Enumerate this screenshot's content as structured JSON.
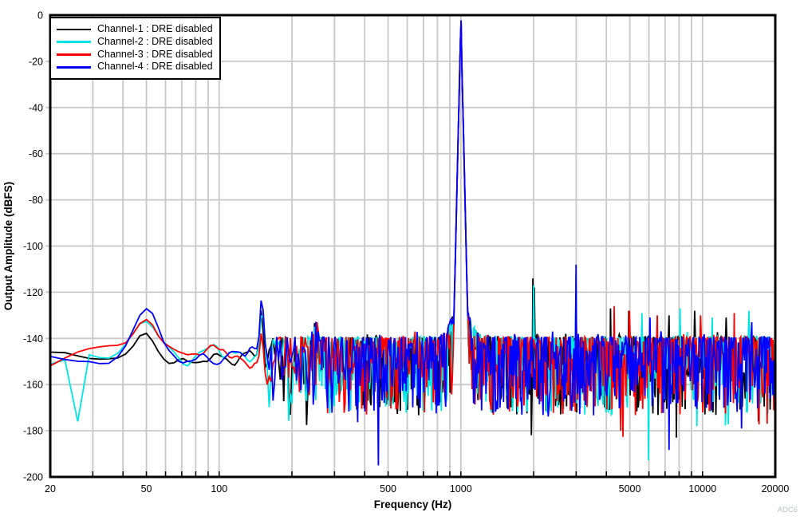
{
  "watermark": "ADC6",
  "chart_data": {
    "type": "line",
    "title": "",
    "xlabel": "Frequency (Hz)",
    "ylabel": "Output Amplitude (dBFS)",
    "x_scale": "log",
    "xlim": [
      20,
      20000
    ],
    "ylim": [
      -200,
      0
    ],
    "grid": true,
    "legend_position": "top-left",
    "background_color": "#ffffff",
    "grid_color": "#c8c8c8",
    "axis_color": "#000000",
    "x_major_ticks": [
      20,
      50,
      100,
      500,
      1000,
      5000,
      10000,
      20000
    ],
    "x_gridlines": [
      30,
      40,
      50,
      60,
      70,
      80,
      90,
      100,
      200,
      300,
      400,
      500,
      600,
      700,
      800,
      900,
      1000,
      2000,
      3000,
      4000,
      5000,
      6000,
      7000,
      8000,
      9000,
      10000
    ],
    "y_ticks": [
      0,
      -20,
      -40,
      -60,
      -80,
      -100,
      -120,
      -140,
      -160,
      -180,
      -200
    ],
    "noise_model": {
      "floor_top_dbfs": -139.3,
      "floor_median_dbfs": -147,
      "floor_deep_dbfs": -175,
      "smooth_below_hz": 150,
      "skirt_db_per_decade": 4500
    },
    "shared_features": [
      {
        "freq_hz": 50,
        "width_decades": 0.045,
        "gain_db": [
          12,
          11,
          13,
          16
        ]
      },
      {
        "freq_hz": 150,
        "width_decades": 0.007,
        "gain_db": [
          19,
          17,
          21,
          22
        ]
      },
      {
        "freq_hz": 250,
        "width_decades": 0.008,
        "gain_db": [
          8,
          5,
          9,
          7
        ]
      },
      {
        "freq_hz": 1000,
        "width_decades": 0.035,
        "gain_db": [
          15,
          15,
          15,
          15
        ]
      }
    ],
    "series": [
      {
        "name": "Channel-1 : DRE disabled",
        "color": "#000000",
        "fundamental": {
          "freq_hz": 1000,
          "amplitude_dbfs": -2.6
        },
        "spurs": [
          [
            1990,
            -114
          ],
          [
            2015,
            -118
          ],
          [
            4150,
            -127
          ],
          [
            4950,
            -128
          ],
          [
            7250,
            -130
          ],
          [
            9300,
            -128
          ],
          [
            12500,
            -131
          ]
        ],
        "dips": [
          [
            7800,
            -183
          ],
          [
            17000,
            -176
          ]
        ]
      },
      {
        "name": "Channel-2 : DRE disabled",
        "color": "#00E5E5",
        "fundamental": {
          "freq_hz": 1000,
          "amplitude_dbfs": -2.5
        },
        "spurs": [
          [
            2002,
            -117
          ],
          [
            3000,
            -119
          ],
          [
            5600,
            -129
          ],
          [
            8050,
            -127
          ],
          [
            11000,
            -131
          ],
          [
            15500,
            -128
          ]
        ],
        "dips": [
          [
            25.5,
            -176
          ],
          [
            9500,
            -178
          ]
        ]
      },
      {
        "name": "Channel-3 : DRE disabled",
        "color": "#FF0000",
        "fundamental": {
          "freq_hz": 1000,
          "amplitude_dbfs": -2.4
        },
        "spurs": [
          [
            3000,
            -127
          ],
          [
            4300,
            -126
          ],
          [
            5000,
            -128
          ],
          [
            6500,
            -130
          ],
          [
            9800,
            -130
          ],
          [
            13500,
            -129
          ]
        ],
        "dips": [
          [
            4600,
            -180
          ],
          [
            18500,
            -177
          ]
        ]
      },
      {
        "name": "Channel-4 : DRE disabled",
        "color": "#0000FF",
        "fundamental": {
          "freq_hz": 1000,
          "amplitude_dbfs": -2.2
        },
        "spurs": [
          [
            3000,
            -108
          ],
          [
            6050,
            -131
          ],
          [
            16000,
            -133
          ]
        ],
        "dips": [
          [
            455,
            -195
          ],
          [
            14500,
            -179
          ]
        ]
      }
    ]
  }
}
